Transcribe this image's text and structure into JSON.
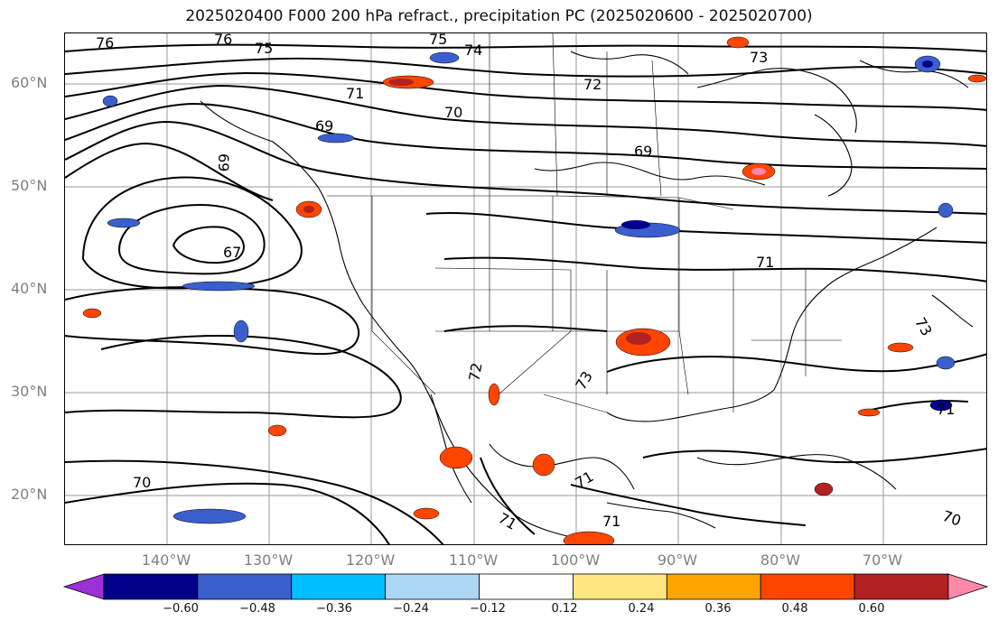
{
  "title": "2025020400 F000 200 hPa refract., precipitation PC (2025020600 - 2025020700)",
  "lat_labels": [
    "60°N",
    "50°N",
    "40°N",
    "30°N",
    "20°N"
  ],
  "lon_labels": [
    "140°W",
    "130°W",
    "120°W",
    "110°W",
    "100°W",
    "90°W",
    "80°W",
    "70°W"
  ],
  "contour_labels": [
    "76",
    "76",
    "75",
    "75",
    "74",
    "73",
    "72",
    "71",
    "70",
    "69",
    "69",
    "69",
    "67",
    "72",
    "73",
    "73",
    "71",
    "71",
    "71",
    "71",
    "70",
    "71",
    "70"
  ],
  "colorbar": {
    "ticks": [
      "−0.60",
      "−0.48",
      "−0.36",
      "−0.24",
      "−0.12",
      "0.12",
      "0.24",
      "0.36",
      "0.48",
      "0.60"
    ],
    "colors": [
      "#9b30d9",
      "#00008b",
      "#3a5fcd",
      "#00bfff",
      "#add8f5",
      "#ffffff",
      "#ffe680",
      "#ffa500",
      "#ff4500",
      "#b22222",
      "#ff88aa"
    ]
  }
}
